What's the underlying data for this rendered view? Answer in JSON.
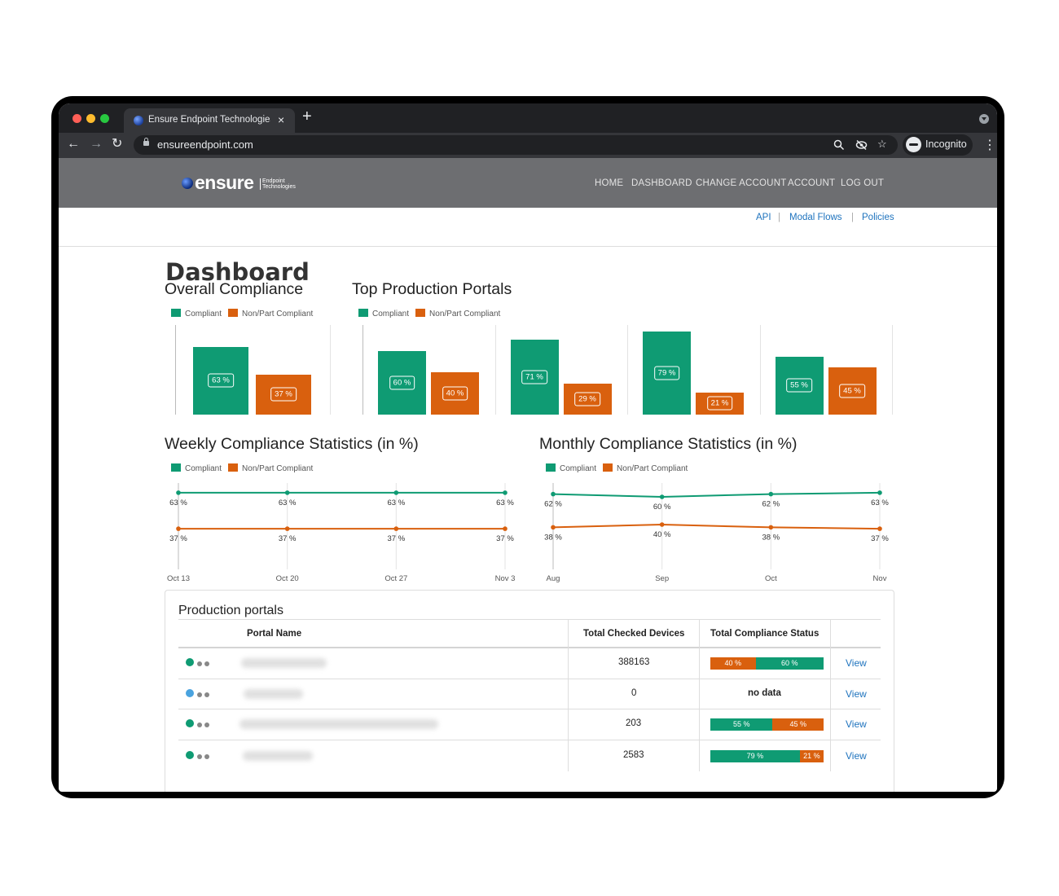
{
  "browser": {
    "tab_title": "Ensure Endpoint Technologies",
    "tab_close": "×",
    "new_tab": "+",
    "url": "ensureendpoint.com",
    "profile_label": "Incognito",
    "nav_icons": [
      "back-arrow-icon",
      "forward-arrow-icon",
      "reload-icon"
    ],
    "omnibox_icons": [
      "zoom-icon",
      "eye-off-icon",
      "star-icon"
    ]
  },
  "colors": {
    "compliant": "#0f9b73",
    "noncompliant": "#d9600e",
    "header_bg": "#6d6e71",
    "link": "#1e73be",
    "status_blue": "#4aa3df"
  },
  "site": {
    "logo_word": "ensure",
    "logo_sub_1": "Endpoint",
    "logo_sub_2": "Technologies",
    "nav": [
      "HOME",
      "DASHBOARD",
      "CHANGE ACCOUNT",
      "ACCOUNT",
      "LOG OUT"
    ],
    "sublinks": [
      "API",
      "Modal Flows",
      "Policies"
    ],
    "sublink_sep": "|"
  },
  "page": {
    "title": "Dashboard"
  },
  "legend": {
    "compliant": "Compliant",
    "noncompliant": "Non/Part Compliant"
  },
  "chart_data": [
    {
      "type": "bar",
      "title": "Overall Compliance",
      "categories": [
        ""
      ],
      "series": [
        {
          "name": "Compliant",
          "values": [
            63
          ]
        },
        {
          "name": "Non/Part Compliant",
          "values": [
            37
          ]
        }
      ],
      "value_suffix": " %",
      "ylim": [
        0,
        83
      ]
    },
    {
      "type": "bar",
      "title": "Top Production Portals",
      "categories": [
        "",
        "",
        "",
        ""
      ],
      "series": [
        {
          "name": "Compliant",
          "values": [
            60,
            71,
            79,
            55
          ]
        },
        {
          "name": "Non/Part Compliant",
          "values": [
            40,
            29,
            21,
            45
          ]
        }
      ],
      "value_suffix": " %",
      "ylim": [
        0,
        85
      ]
    },
    {
      "type": "line",
      "title": "Weekly Compliance Statistics (in %)",
      "x": [
        "Oct 13",
        "Oct 20",
        "Oct 27",
        "Nov 3"
      ],
      "series": [
        {
          "name": "Compliant",
          "values": [
            63,
            63,
            63,
            63
          ]
        },
        {
          "name": "Non/Part Compliant",
          "values": [
            37,
            37,
            37,
            37
          ]
        }
      ],
      "value_suffix": " %"
    },
    {
      "type": "line",
      "title": "Monthly Compliance Statistics (in %)",
      "x": [
        "Aug",
        "Sep",
        "Oct",
        "Nov"
      ],
      "series": [
        {
          "name": "Compliant",
          "values": [
            62,
            60,
            62,
            63
          ]
        },
        {
          "name": "Non/Part Compliant",
          "values": [
            38,
            40,
            38,
            37
          ]
        }
      ],
      "value_suffix": " %"
    }
  ],
  "table": {
    "title": "Production portals",
    "headers": [
      "Portal Name",
      "Total Checked Devices",
      "Total Compliance Status"
    ],
    "view_label": "View",
    "rows": [
      {
        "status_color": "#0f9b73",
        "devices": "388163",
        "noncompliant": 40,
        "compliant": 60,
        "order": "non-first"
      },
      {
        "status_color": "#4aa3df",
        "devices": "0",
        "no_data": "no data"
      },
      {
        "status_color": "#0f9b73",
        "devices": "203",
        "compliant": 55,
        "noncompliant": 45,
        "order": "comp-first"
      },
      {
        "status_color": "#0f9b73",
        "devices": "2583",
        "compliant": 79,
        "noncompliant": 21,
        "order": "comp-first"
      }
    ]
  }
}
